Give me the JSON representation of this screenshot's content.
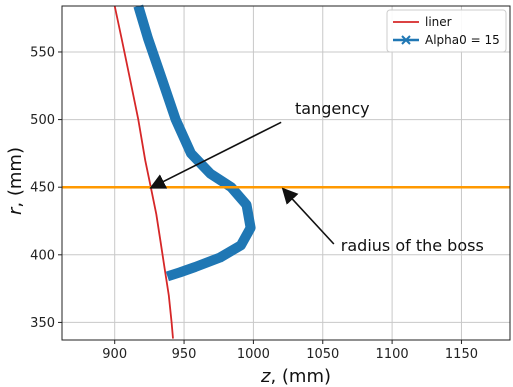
{
  "chart_data": {
    "type": "line",
    "xlabel_var": "z",
    "xlabel_unit": ", (mm)",
    "ylabel_var": "r",
    "ylabel_unit": ", (mm)",
    "xlim": [
      862,
      1185
    ],
    "ylim": [
      337,
      584
    ],
    "xticks": [
      900,
      950,
      1000,
      1050,
      1100,
      1150
    ],
    "yticks": [
      350,
      400,
      450,
      500,
      550
    ],
    "grid": true,
    "legend_position": "top-right",
    "series": [
      {
        "name": "liner",
        "color": "#d62728",
        "points": [
          [
            900,
            584
          ],
          [
            905,
            560
          ],
          [
            911,
            530
          ],
          [
            917,
            500
          ],
          [
            922,
            470
          ],
          [
            926,
            450
          ],
          [
            930,
            430
          ],
          [
            933,
            410
          ],
          [
            936,
            390
          ],
          [
            939,
            370
          ],
          [
            941,
            350
          ],
          [
            942,
            338
          ]
        ]
      },
      {
        "name": "Alpha0 = 15",
        "color": "#1f77b4",
        "points": [
          [
            917,
            584
          ],
          [
            924,
            560
          ],
          [
            934,
            530
          ],
          [
            944,
            500
          ],
          [
            955,
            475
          ],
          [
            969,
            460
          ],
          [
            984,
            450
          ],
          [
            995,
            437
          ],
          [
            998,
            420
          ],
          [
            991,
            407
          ],
          [
            976,
            398
          ],
          [
            958,
            391
          ],
          [
            947,
            387
          ],
          [
            938,
            384
          ]
        ]
      }
    ],
    "hlines": [
      {
        "y": 450,
        "color": "#ff9900"
      }
    ],
    "annotations": [
      {
        "text": "tangency",
        "point": [
          927,
          450
        ],
        "text_at": [
          1030,
          504
        ]
      },
      {
        "text": "radius of the boss",
        "point": [
          1022,
          448
        ],
        "text_at": [
          1063,
          403
        ]
      }
    ]
  }
}
